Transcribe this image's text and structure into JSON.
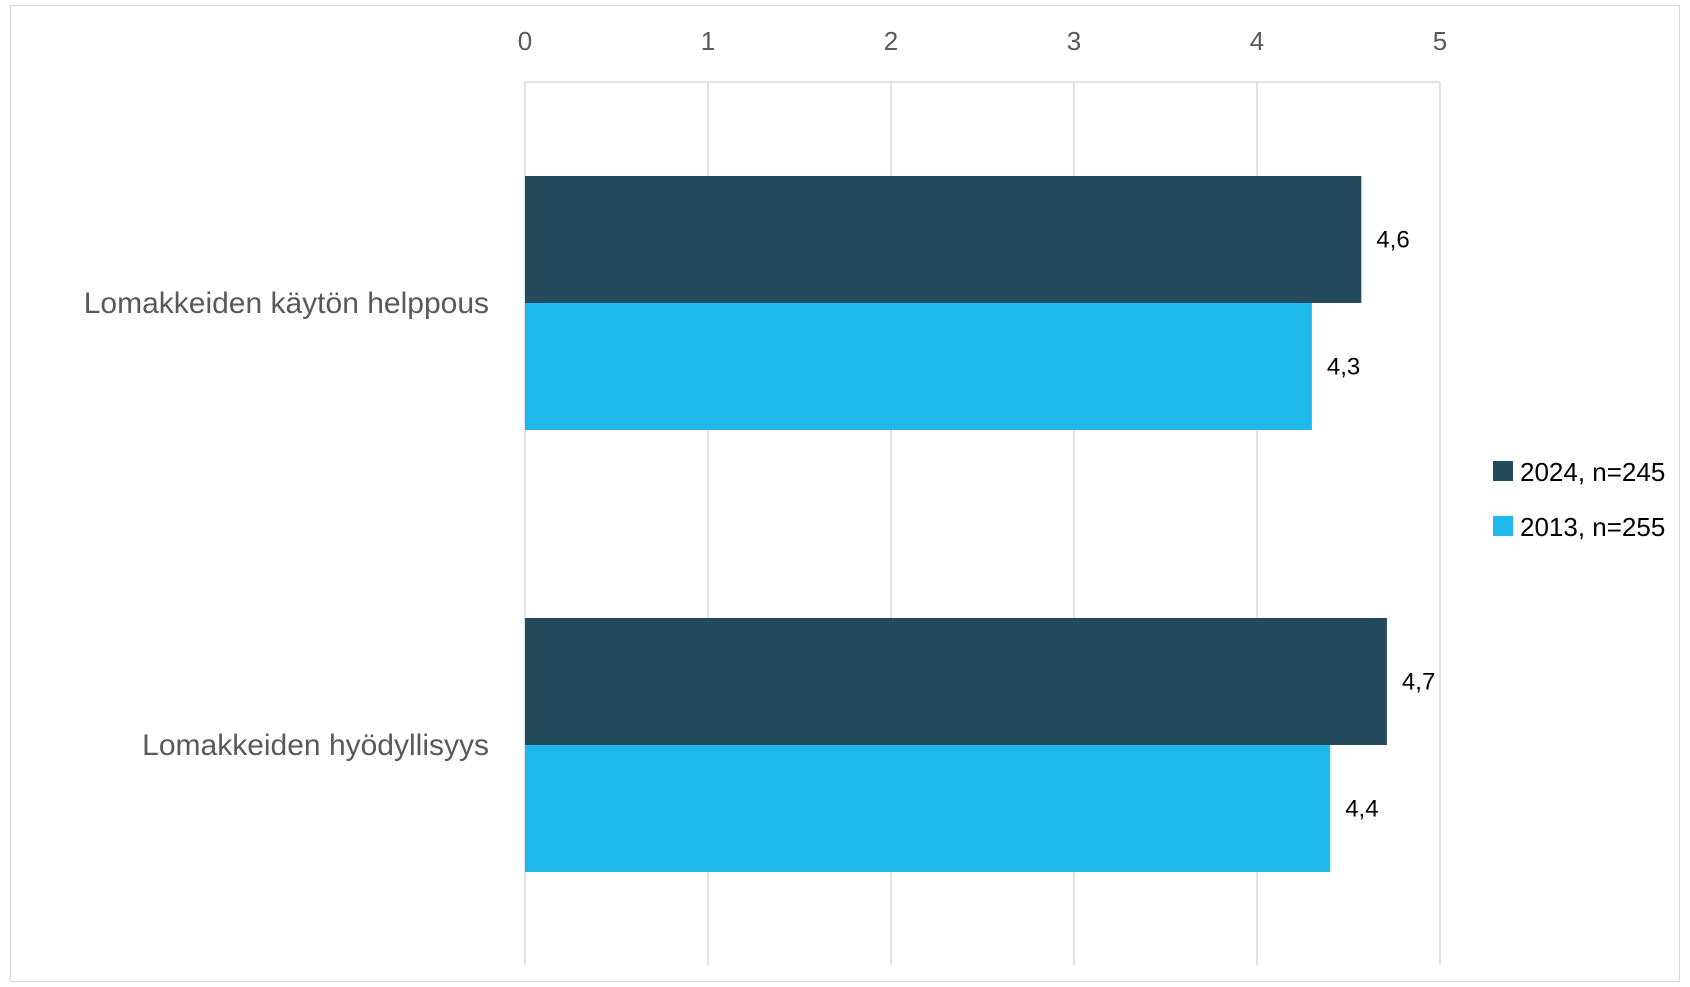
{
  "chart_data": {
    "type": "bar",
    "orientation": "horizontal",
    "categories": [
      "Lomakkeiden käytön helppous",
      "Lomakkeiden hyödyllisyys"
    ],
    "series": [
      {
        "name": "2024, n=245",
        "color": "#234b5b",
        "values": [
          4.57,
          4.71
        ],
        "labels": [
          "4,6",
          "4,7"
        ]
      },
      {
        "name": "2013, n=255",
        "color": "#1eb8ea",
        "values": [
          4.3,
          4.4
        ],
        "labels": [
          "4,3",
          "4,4"
        ]
      }
    ],
    "xlim": [
      0,
      5
    ],
    "x_ticks": [
      "0",
      "1",
      "2",
      "3",
      "4",
      "5"
    ],
    "x_axis_position": "top",
    "gridlines": true,
    "legend_position": "right"
  }
}
